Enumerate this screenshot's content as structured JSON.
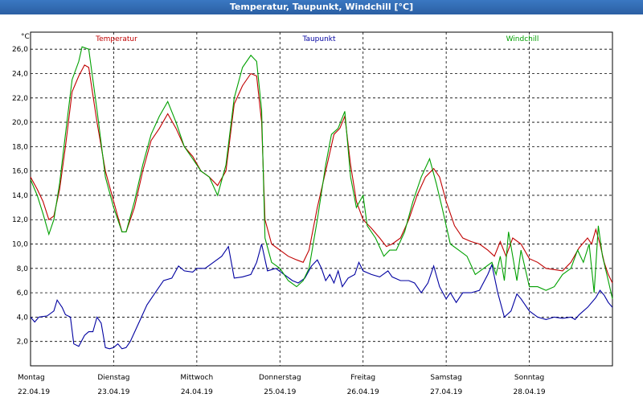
{
  "window": {
    "title": "Temperatur, Taupunkt, Windchill [°C]"
  },
  "chart_data": {
    "type": "line",
    "title": "Temperatur, Taupunkt, Windchill [°C]",
    "ylabel": "°C",
    "ylim": [
      0,
      27.4
    ],
    "yticks": [
      "2,0",
      "4,0",
      "6,0",
      "8,0",
      "10,0",
      "12,0",
      "14,0",
      "16,0",
      "18,0",
      "20,0",
      "22,0",
      "24,0",
      "26,0"
    ],
    "grid": true,
    "legend_placement": "top",
    "x_range": [
      0,
      7.0
    ],
    "days": [
      {
        "name": "Montag",
        "date": "22.04.19"
      },
      {
        "name": "Dienstag",
        "date": "23.04.19"
      },
      {
        "name": "Mittwoch",
        "date": "24.04.19"
      },
      {
        "name": "Donnerstag",
        "date": "25.04.19"
      },
      {
        "name": "Freitag",
        "date": "26.04.19"
      },
      {
        "name": "Samstag",
        "date": "27.04.19"
      },
      {
        "name": "Sonntag",
        "date": "28.04.19"
      }
    ],
    "series": [
      {
        "name": "Temperatur",
        "color": "#c00000",
        "points": [
          [
            0.0,
            15.5
          ],
          [
            0.08,
            14.5
          ],
          [
            0.15,
            13.5
          ],
          [
            0.22,
            12.0
          ],
          [
            0.28,
            12.3
          ],
          [
            0.35,
            14.5
          ],
          [
            0.42,
            18.0
          ],
          [
            0.5,
            22.5
          ],
          [
            0.58,
            23.8
          ],
          [
            0.65,
            24.7
          ],
          [
            0.7,
            24.5
          ],
          [
            0.8,
            20.0
          ],
          [
            0.9,
            16.0
          ],
          [
            1.0,
            13.5
          ],
          [
            1.1,
            11.0
          ],
          [
            1.15,
            11.0
          ],
          [
            1.25,
            13.0
          ],
          [
            1.35,
            16.0
          ],
          [
            1.45,
            18.5
          ],
          [
            1.55,
            19.5
          ],
          [
            1.65,
            20.7
          ],
          [
            1.75,
            19.5
          ],
          [
            1.85,
            18.0
          ],
          [
            1.95,
            17.2
          ],
          [
            2.05,
            16.0
          ],
          [
            2.15,
            15.5
          ],
          [
            2.25,
            14.8
          ],
          [
            2.35,
            16.0
          ],
          [
            2.45,
            21.5
          ],
          [
            2.55,
            23.0
          ],
          [
            2.65,
            24.0
          ],
          [
            2.72,
            23.8
          ],
          [
            2.78,
            20.0
          ],
          [
            2.82,
            12.0
          ],
          [
            2.9,
            10.0
          ],
          [
            3.0,
            9.5
          ],
          [
            3.1,
            9.0
          ],
          [
            3.2,
            8.7
          ],
          [
            3.28,
            8.5
          ],
          [
            3.35,
            9.5
          ],
          [
            3.45,
            13.0
          ],
          [
            3.55,
            16.0
          ],
          [
            3.65,
            19.0
          ],
          [
            3.72,
            19.5
          ],
          [
            3.78,
            20.5
          ],
          [
            3.85,
            16.5
          ],
          [
            3.92,
            13.5
          ],
          [
            4.0,
            12.0
          ],
          [
            4.1,
            11.3
          ],
          [
            4.2,
            10.5
          ],
          [
            4.28,
            9.8
          ],
          [
            4.35,
            10.0
          ],
          [
            4.45,
            10.5
          ],
          [
            4.55,
            12.0
          ],
          [
            4.65,
            14.0
          ],
          [
            4.75,
            15.5
          ],
          [
            4.85,
            16.2
          ],
          [
            4.92,
            15.5
          ],
          [
            5.0,
            13.5
          ],
          [
            5.1,
            11.5
          ],
          [
            5.2,
            10.5
          ],
          [
            5.3,
            10.2
          ],
          [
            5.4,
            10.0
          ],
          [
            5.5,
            9.5
          ],
          [
            5.58,
            9.0
          ],
          [
            5.65,
            10.2
          ],
          [
            5.72,
            9.0
          ],
          [
            5.8,
            10.5
          ],
          [
            5.9,
            10.0
          ],
          [
            6.0,
            8.8
          ],
          [
            6.1,
            8.5
          ],
          [
            6.2,
            8.0
          ],
          [
            6.3,
            7.9
          ],
          [
            6.4,
            7.8
          ],
          [
            6.5,
            8.5
          ],
          [
            6.6,
            9.7
          ],
          [
            6.7,
            10.5
          ],
          [
            6.75,
            10.0
          ],
          [
            6.8,
            11.2
          ],
          [
            6.85,
            10.0
          ],
          [
            6.9,
            8.5
          ],
          [
            6.95,
            7.5
          ],
          [
            7.0,
            6.8
          ]
        ]
      },
      {
        "name": "Taupunkt",
        "color": "#0000a0",
        "points": [
          [
            0.0,
            4.0
          ],
          [
            0.05,
            3.6
          ],
          [
            0.1,
            4.0
          ],
          [
            0.2,
            4.1
          ],
          [
            0.28,
            4.5
          ],
          [
            0.32,
            5.4
          ],
          [
            0.38,
            4.8
          ],
          [
            0.42,
            4.2
          ],
          [
            0.48,
            4.0
          ],
          [
            0.52,
            1.8
          ],
          [
            0.58,
            1.6
          ],
          [
            0.65,
            2.5
          ],
          [
            0.7,
            2.8
          ],
          [
            0.75,
            2.8
          ],
          [
            0.8,
            4.0
          ],
          [
            0.85,
            3.5
          ],
          [
            0.9,
            1.5
          ],
          [
            0.95,
            1.4
          ],
          [
            1.0,
            1.5
          ],
          [
            1.05,
            1.8
          ],
          [
            1.1,
            1.4
          ],
          [
            1.15,
            1.5
          ],
          [
            1.2,
            2.0
          ],
          [
            1.3,
            3.5
          ],
          [
            1.4,
            5.0
          ],
          [
            1.5,
            6.0
          ],
          [
            1.6,
            7.0
          ],
          [
            1.7,
            7.2
          ],
          [
            1.78,
            8.2
          ],
          [
            1.85,
            7.8
          ],
          [
            1.95,
            7.7
          ],
          [
            2.0,
            8.0
          ],
          [
            2.1,
            8.0
          ],
          [
            2.2,
            8.5
          ],
          [
            2.3,
            9.0
          ],
          [
            2.38,
            9.8
          ],
          [
            2.45,
            7.2
          ],
          [
            2.55,
            7.3
          ],
          [
            2.65,
            7.5
          ],
          [
            2.72,
            8.5
          ],
          [
            2.78,
            10.0
          ],
          [
            2.85,
            7.8
          ],
          [
            2.95,
            8.0
          ],
          [
            3.05,
            7.5
          ],
          [
            3.15,
            7.0
          ],
          [
            3.22,
            6.8
          ],
          [
            3.3,
            7.2
          ],
          [
            3.38,
            8.2
          ],
          [
            3.45,
            8.7
          ],
          [
            3.5,
            8.0
          ],
          [
            3.55,
            7.0
          ],
          [
            3.6,
            7.5
          ],
          [
            3.65,
            6.8
          ],
          [
            3.7,
            7.8
          ],
          [
            3.75,
            6.5
          ],
          [
            3.82,
            7.2
          ],
          [
            3.9,
            7.5
          ],
          [
            3.95,
            8.5
          ],
          [
            4.0,
            7.8
          ],
          [
            4.1,
            7.5
          ],
          [
            4.2,
            7.3
          ],
          [
            4.3,
            7.8
          ],
          [
            4.35,
            7.3
          ],
          [
            4.45,
            7.0
          ],
          [
            4.55,
            7.0
          ],
          [
            4.62,
            6.8
          ],
          [
            4.7,
            6.0
          ],
          [
            4.78,
            6.8
          ],
          [
            4.85,
            8.2
          ],
          [
            4.92,
            6.5
          ],
          [
            5.0,
            5.5
          ],
          [
            5.05,
            6.0
          ],
          [
            5.12,
            5.2
          ],
          [
            5.2,
            6.0
          ],
          [
            5.3,
            6.0
          ],
          [
            5.4,
            6.2
          ],
          [
            5.5,
            7.5
          ],
          [
            5.55,
            8.3
          ],
          [
            5.62,
            6.0
          ],
          [
            5.7,
            4.0
          ],
          [
            5.78,
            4.5
          ],
          [
            5.85,
            5.9
          ],
          [
            5.9,
            5.5
          ],
          [
            6.0,
            4.5
          ],
          [
            6.1,
            4.0
          ],
          [
            6.2,
            3.8
          ],
          [
            6.3,
            4.0
          ],
          [
            6.4,
            3.9
          ],
          [
            6.5,
            4.0
          ],
          [
            6.55,
            3.8
          ],
          [
            6.6,
            4.2
          ],
          [
            6.7,
            4.8
          ],
          [
            6.8,
            5.6
          ],
          [
            6.85,
            6.2
          ],
          [
            6.9,
            5.8
          ],
          [
            6.95,
            5.2
          ],
          [
            7.0,
            4.8
          ]
        ]
      },
      {
        "name": "Windchill",
        "color": "#00a000",
        "points": [
          [
            0.0,
            15.3
          ],
          [
            0.08,
            14.0
          ],
          [
            0.15,
            12.5
          ],
          [
            0.22,
            10.8
          ],
          [
            0.28,
            12.0
          ],
          [
            0.35,
            15.0
          ],
          [
            0.42,
            19.0
          ],
          [
            0.5,
            23.5
          ],
          [
            0.58,
            25.0
          ],
          [
            0.62,
            26.2
          ],
          [
            0.7,
            26.0
          ],
          [
            0.8,
            21.0
          ],
          [
            0.9,
            15.5
          ],
          [
            1.0,
            13.0
          ],
          [
            1.1,
            11.0
          ],
          [
            1.15,
            11.0
          ],
          [
            1.25,
            13.5
          ],
          [
            1.35,
            16.5
          ],
          [
            1.45,
            19.0
          ],
          [
            1.55,
            20.5
          ],
          [
            1.65,
            21.7
          ],
          [
            1.75,
            20.0
          ],
          [
            1.85,
            18.0
          ],
          [
            1.95,
            17.0
          ],
          [
            2.05,
            16.0
          ],
          [
            2.15,
            15.5
          ],
          [
            2.25,
            14.0
          ],
          [
            2.35,
            16.5
          ],
          [
            2.45,
            22.0
          ],
          [
            2.55,
            24.5
          ],
          [
            2.65,
            25.5
          ],
          [
            2.72,
            25.0
          ],
          [
            2.78,
            21.0
          ],
          [
            2.82,
            10.5
          ],
          [
            2.9,
            8.5
          ],
          [
            3.0,
            8.0
          ],
          [
            3.1,
            7.0
          ],
          [
            3.2,
            6.5
          ],
          [
            3.28,
            7.0
          ],
          [
            3.35,
            8.0
          ],
          [
            3.45,
            12.0
          ],
          [
            3.55,
            16.5
          ],
          [
            3.62,
            19.0
          ],
          [
            3.7,
            19.5
          ],
          [
            3.78,
            20.9
          ],
          [
            3.85,
            15.5
          ],
          [
            3.92,
            13.0
          ],
          [
            4.0,
            14.0
          ],
          [
            4.05,
            11.5
          ],
          [
            4.15,
            10.5
          ],
          [
            4.25,
            9.0
          ],
          [
            4.32,
            9.5
          ],
          [
            4.4,
            9.5
          ],
          [
            4.5,
            11.0
          ],
          [
            4.6,
            13.5
          ],
          [
            4.7,
            15.5
          ],
          [
            4.8,
            17.0
          ],
          [
            4.88,
            15.0
          ],
          [
            4.95,
            13.0
          ],
          [
            5.05,
            10.0
          ],
          [
            5.15,
            9.5
          ],
          [
            5.25,
            9.0
          ],
          [
            5.35,
            7.5
          ],
          [
            5.45,
            8.0
          ],
          [
            5.55,
            8.5
          ],
          [
            5.6,
            7.5
          ],
          [
            5.65,
            9.0
          ],
          [
            5.7,
            7.0
          ],
          [
            5.75,
            11.0
          ],
          [
            5.8,
            9.0
          ],
          [
            5.85,
            7.0
          ],
          [
            5.9,
            9.5
          ],
          [
            6.0,
            6.5
          ],
          [
            6.1,
            6.5
          ],
          [
            6.2,
            6.2
          ],
          [
            6.3,
            6.5
          ],
          [
            6.4,
            7.5
          ],
          [
            6.5,
            8.0
          ],
          [
            6.58,
            9.5
          ],
          [
            6.65,
            8.5
          ],
          [
            6.72,
            10.0
          ],
          [
            6.78,
            6.0
          ],
          [
            6.83,
            11.5
          ],
          [
            6.88,
            9.0
          ],
          [
            6.95,
            7.0
          ],
          [
            7.0,
            5.5
          ]
        ]
      }
    ]
  }
}
